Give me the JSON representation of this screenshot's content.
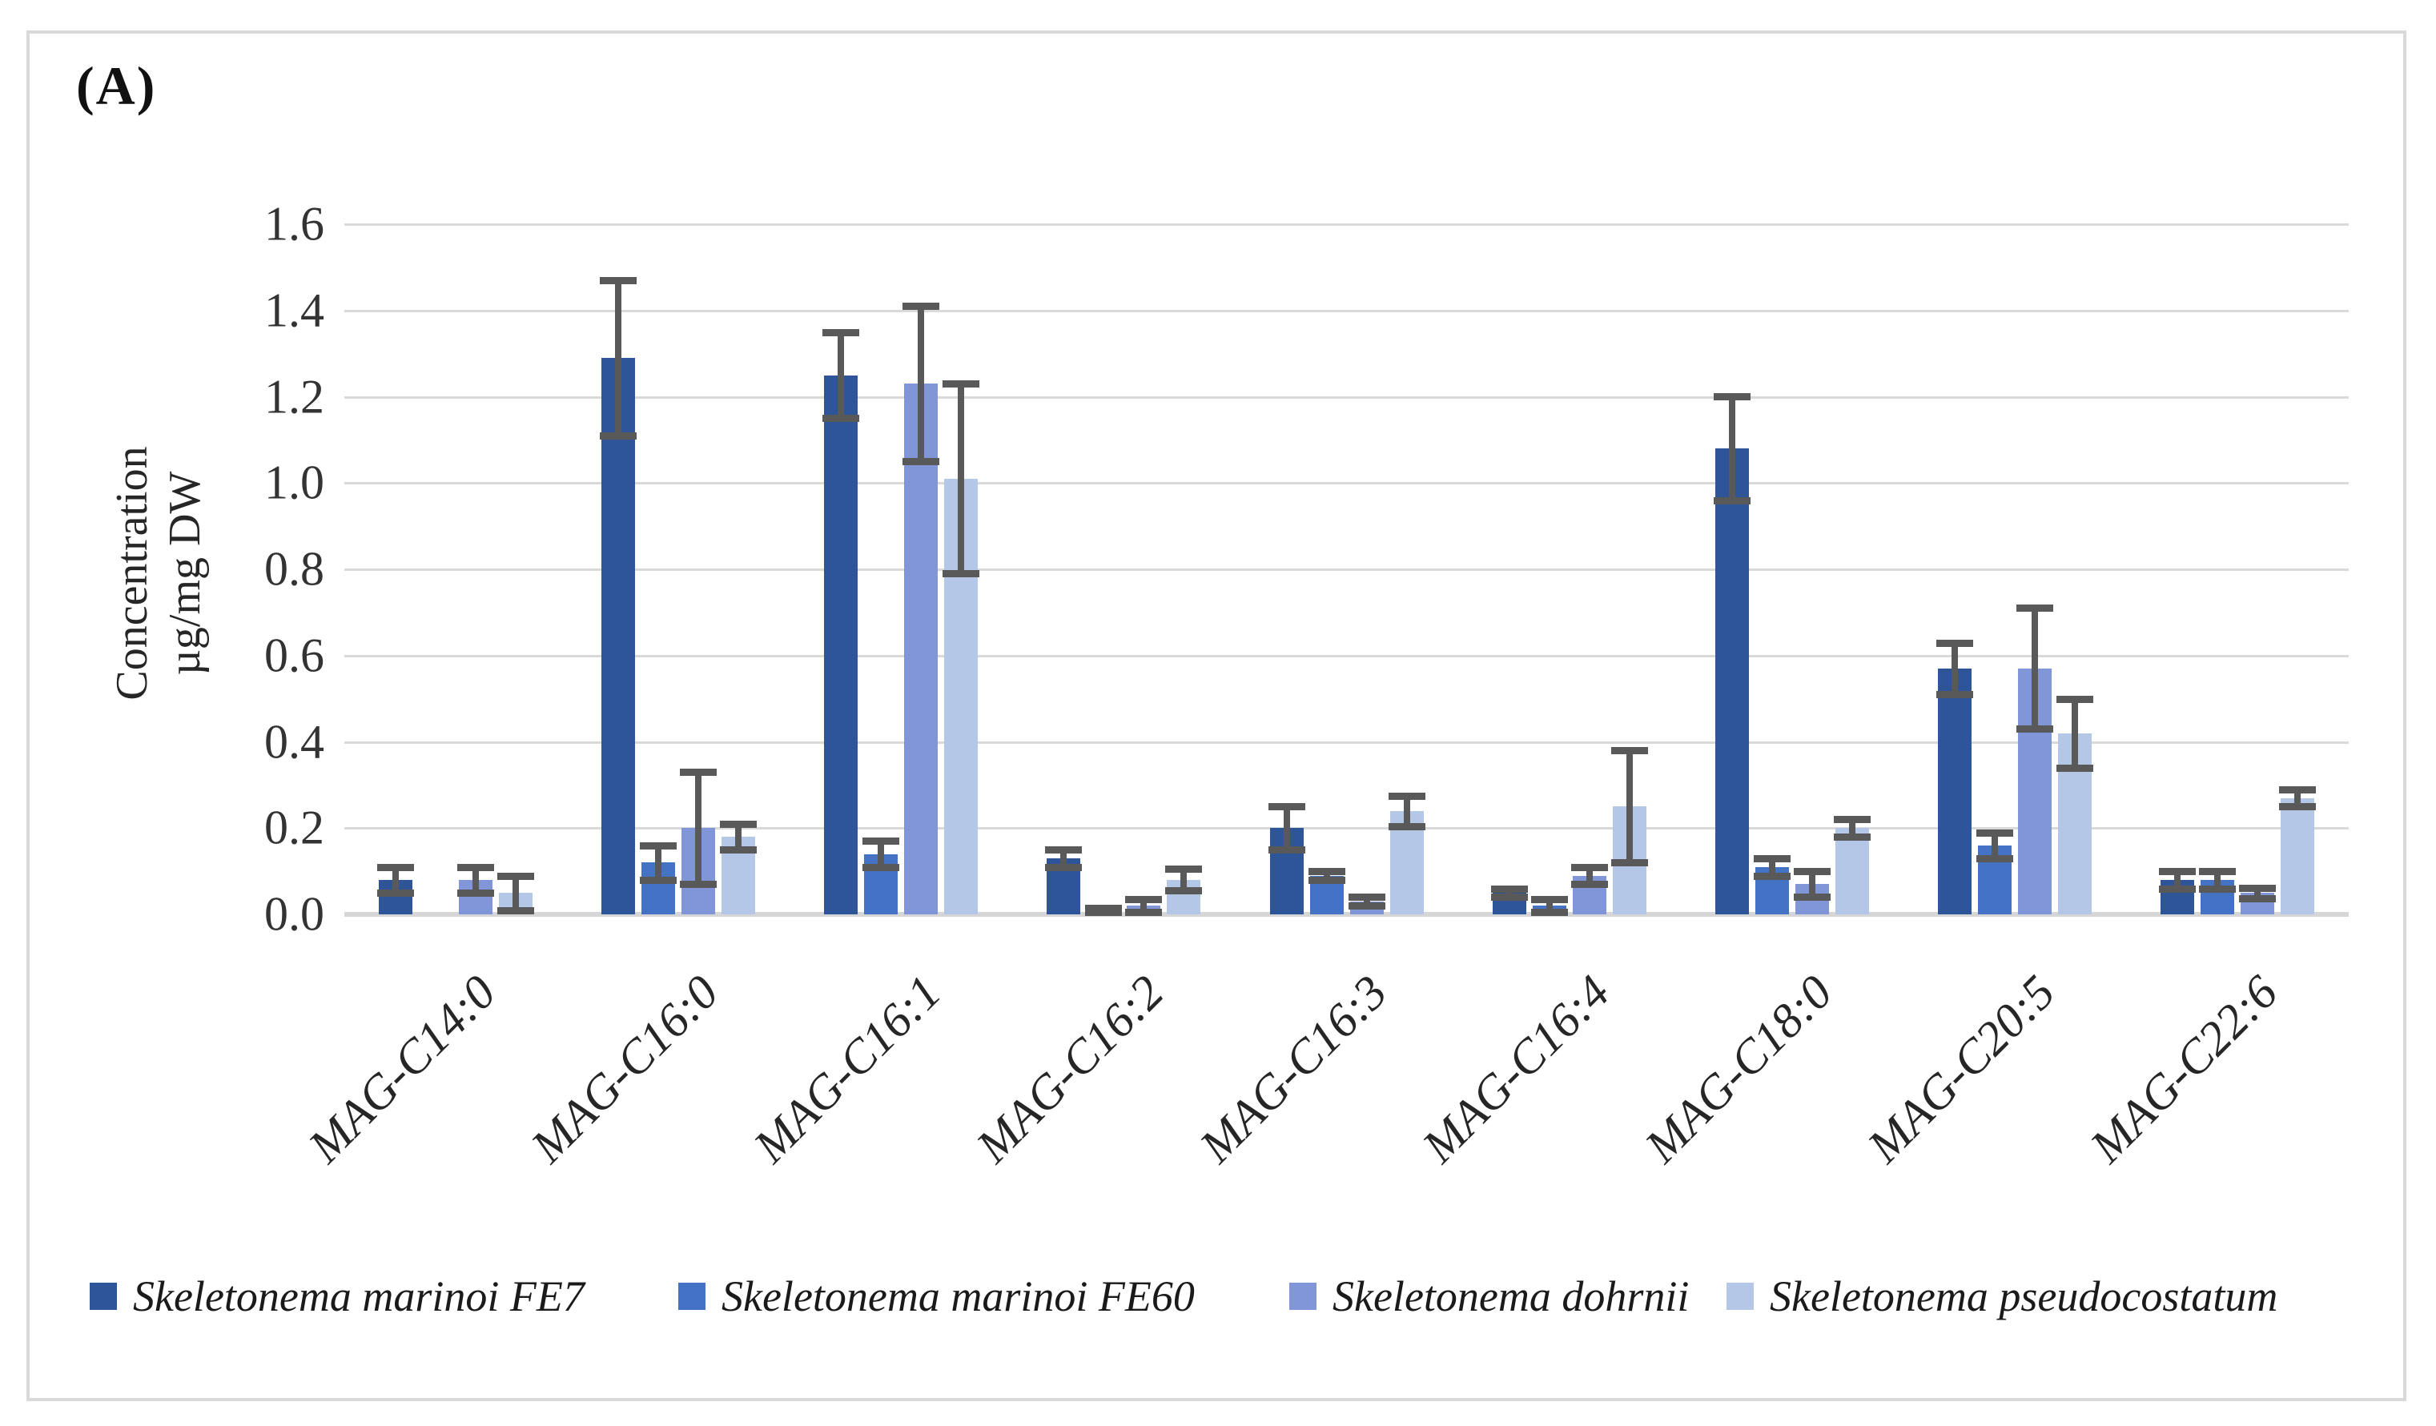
{
  "panel_label": "(A)",
  "y_axis": {
    "title_line1": "Concentration",
    "title_line2": "µg/mg DW",
    "tick_labels": [
      "1.6",
      "1.4",
      "1.2",
      "1.0",
      "0.8",
      "0.6",
      "0.4",
      "0.2",
      "0.0"
    ]
  },
  "colors": {
    "grid": "#d9d9d9",
    "error_bar": "#595959",
    "frame_border": "#d9d9d9"
  },
  "chart_data": {
    "type": "bar",
    "title": "(A)",
    "ylabel": "Concentration µg/mg DW",
    "xlabel": "",
    "ylim": [
      0,
      1.6
    ],
    "ytick_step": 0.2,
    "grid": true,
    "legend_position": "bottom",
    "error_bars": true,
    "categories": [
      "MAG-C14:0",
      "MAG-C16:0",
      "MAG-C16:1",
      "MAG-C16:2",
      "MAG-C16:3",
      "MAG-C16:4",
      "MAG-C18:0",
      "MAG-C20:5",
      "MAG-C22:6"
    ],
    "series": [
      {
        "name": "Skeletonema marinoi FE7",
        "color": "#2e5597",
        "values": [
          0.08,
          1.29,
          1.25,
          0.13,
          0.2,
          0.05,
          1.08,
          0.57,
          0.08
        ],
        "errors": [
          0.03,
          0.18,
          0.1,
          0.02,
          0.05,
          0.01,
          0.12,
          0.06,
          0.02
        ]
      },
      {
        "name": "Skeletonema marinoi FE60",
        "color": "#4472c4",
        "values": [
          0,
          0.12,
          0.14,
          0.01,
          0.09,
          0.02,
          0.11,
          0.16,
          0.08
        ],
        "errors": [
          0,
          0.04,
          0.03,
          0.005,
          0.01,
          0.015,
          0.02,
          0.03,
          0.02
        ]
      },
      {
        "name": "Skeletonema dohrnii",
        "color": "#8096d8",
        "values": [
          0.08,
          0.2,
          1.23,
          0.02,
          0.03,
          0.09,
          0.07,
          0.57,
          0.05
        ],
        "errors": [
          0.03,
          0.13,
          0.18,
          0.015,
          0.01,
          0.02,
          0.03,
          0.14,
          0.012
        ]
      },
      {
        "name": "Skeletonema pseudocostatum",
        "color": "#b4c7e7",
        "values": [
          0.05,
          0.18,
          1.01,
          0.08,
          0.24,
          0.25,
          0.2,
          0.42,
          0.27
        ],
        "errors": [
          0.04,
          0.03,
          0.22,
          0.025,
          0.035,
          0.13,
          0.02,
          0.08,
          0.02
        ]
      }
    ]
  }
}
